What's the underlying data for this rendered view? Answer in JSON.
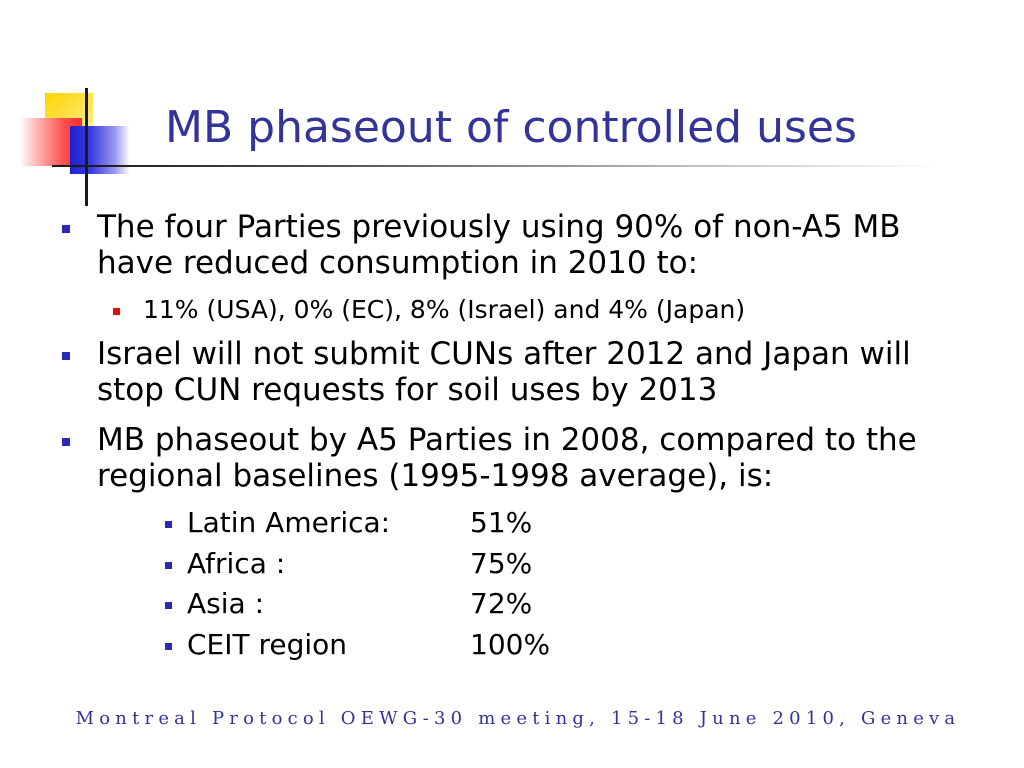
{
  "slide": {
    "title": "MB phaseout of controlled uses",
    "bullets": [
      {
        "text": "The four Parties previously using 90% of non-A5 MB have reduced consumption in 2010 to:",
        "sub": [
          "11% (USA), 0% (EC), 8% (Israel) and 4% (Japan)"
        ]
      },
      {
        "text": "Israel will not submit CUNs after 2012 and Japan will stop CUN requests for soil uses by 2013"
      },
      {
        "text": "MB phaseout by A5 Parties in 2008, compared to the regional baselines (1995-1998 average), is:",
        "regions": [
          {
            "name": "Latin America:",
            "value": "51%"
          },
          {
            "name": "Africa :",
            "value": "75%"
          },
          {
            "name": "Asia :",
            "value": "72%"
          },
          {
            "name": "CEIT region",
            "value": "100%"
          }
        ]
      }
    ],
    "footer": "Montreal Protocol OEWG-30 meeting, 15-18 June 2010, Geneva"
  },
  "colors": {
    "title": "#333399",
    "footer": "#333399",
    "bullet_level1": "#2a2ab5",
    "bullet_level2": "#e01010",
    "bullet_level3": "#2a2ab5"
  },
  "icons": {
    "logo": "tricolor-squares-crosshair-logo"
  }
}
